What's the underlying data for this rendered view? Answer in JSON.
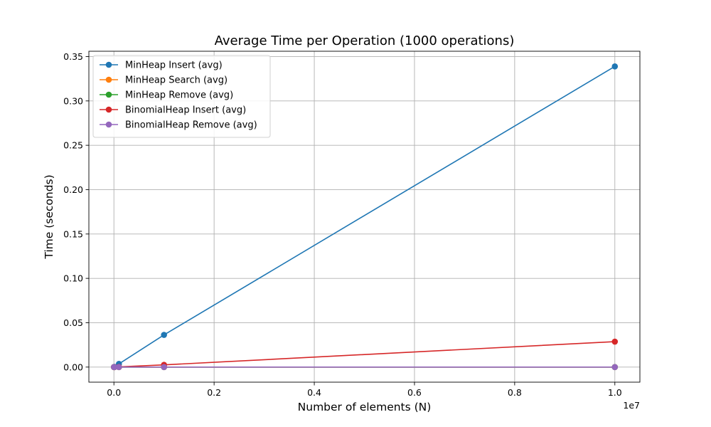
{
  "chart_data": {
    "type": "line",
    "title": "Average Time per Operation (1000 operations)",
    "xlabel": "Number of elements (N)",
    "ylabel": "Time (seconds)",
    "x_offset_label": "1e7",
    "x": [
      1000,
      10000,
      100000,
      1000000,
      10000000
    ],
    "xlim": [
      -500000,
      10500000
    ],
    "ylim": [
      -0.017,
      0.356
    ],
    "x_ticks": [
      0,
      2000000,
      4000000,
      6000000,
      8000000,
      10000000
    ],
    "x_tick_labels": [
      "0.0",
      "0.2",
      "0.4",
      "0.6",
      "0.8",
      "1.0"
    ],
    "y_ticks": [
      0.0,
      0.05,
      0.1,
      0.15,
      0.2,
      0.25,
      0.3,
      0.35
    ],
    "y_tick_labels": [
      "0.00",
      "0.05",
      "0.10",
      "0.15",
      "0.20",
      "0.25",
      "0.30",
      "0.35"
    ],
    "grid": true,
    "legend_position": "upper-left",
    "series": [
      {
        "name": "MinHeap Insert (avg)",
        "color": "#1f77b4",
        "values": [
          3e-05,
          0.0003,
          0.0036,
          0.0363,
          0.3389
        ]
      },
      {
        "name": "MinHeap Search (avg)",
        "color": "#ff7f0e",
        "values": [
          0.0,
          0.0,
          0.0,
          0.0,
          0.0
        ]
      },
      {
        "name": "MinHeap Remove (avg)",
        "color": "#2ca02c",
        "values": [
          0.0,
          0.0,
          0.0,
          0.0,
          0.0
        ]
      },
      {
        "name": "BinomialHeap Insert (avg)",
        "color": "#d62728",
        "values": [
          0.0,
          2e-05,
          0.0002,
          0.0025,
          0.0287
        ]
      },
      {
        "name": "BinomialHeap Remove (avg)",
        "color": "#9467bd",
        "values": [
          0.0,
          0.0,
          0.0,
          0.0,
          0.0
        ]
      }
    ]
  }
}
